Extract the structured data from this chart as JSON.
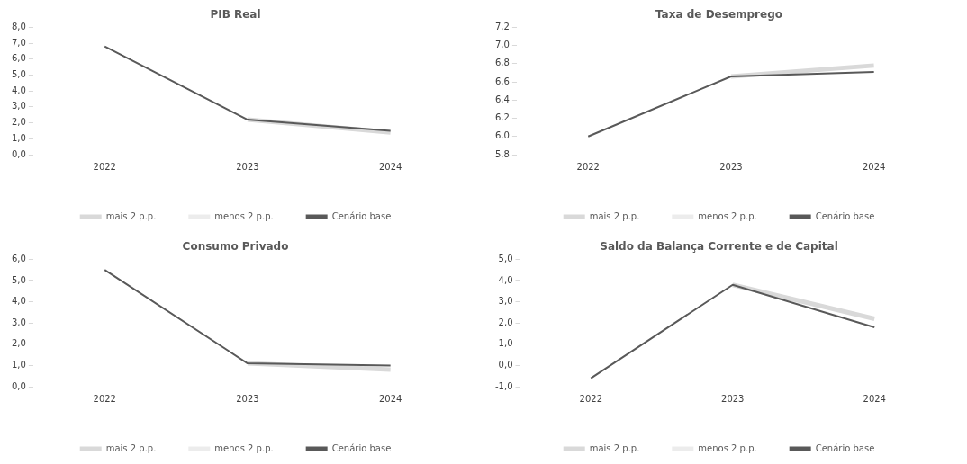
{
  "chart_data": [
    {
      "type": "line",
      "title": "PIB Real",
      "categories": [
        "2022",
        "2023",
        "2024"
      ],
      "legend": "bottom",
      "grid": false,
      "marker": "none",
      "ylim": [
        0,
        8
      ],
      "yticks": [
        {
          "value": 0,
          "label": "0,0"
        },
        {
          "value": 1,
          "label": "1,0"
        },
        {
          "value": 2,
          "label": "2,0"
        },
        {
          "value": 3,
          "label": "3,0"
        },
        {
          "value": 4,
          "label": "4,0"
        },
        {
          "value": 5,
          "label": "5,0"
        },
        {
          "value": 6,
          "label": "6,0"
        },
        {
          "value": 7,
          "label": "7,0"
        },
        {
          "value": 8,
          "label": "8,0"
        }
      ],
      "series": [
        {
          "name": "mais 2 p.p.",
          "color": "#d9d9d9",
          "values": [
            null,
            2.2,
            1.4
          ]
        },
        {
          "name": "menos 2 p.p.",
          "color": "#ececec",
          "values": [
            null,
            null,
            null
          ]
        },
        {
          "name": "Cenário base",
          "color": "#595959",
          "values": [
            6.8,
            2.2,
            1.5
          ]
        }
      ]
    },
    {
      "type": "line",
      "title": "Taxa de Desemprego",
      "categories": [
        "2022",
        "2023",
        "2024"
      ],
      "legend": "bottom",
      "grid": false,
      "marker": "none",
      "ylim": [
        5.8,
        7.2
      ],
      "yticks": [
        {
          "value": 5.8,
          "label": "5,8"
        },
        {
          "value": 6.0,
          "label": "6,0"
        },
        {
          "value": 6.2,
          "label": "6,2"
        },
        {
          "value": 6.4,
          "label": "6,4"
        },
        {
          "value": 6.6,
          "label": "6,6"
        },
        {
          "value": 6.8,
          "label": "6,8"
        },
        {
          "value": 7.0,
          "label": "7,0"
        },
        {
          "value": 7.2,
          "label": "7,2"
        }
      ],
      "series": [
        {
          "name": "mais 2 p.p.",
          "color": "#d9d9d9",
          "values": [
            null,
            6.66,
            6.78
          ]
        },
        {
          "name": "menos 2 p.p.",
          "color": "#ececec",
          "values": [
            null,
            null,
            null
          ]
        },
        {
          "name": "Cenário base",
          "color": "#595959",
          "values": [
            6.0,
            6.66,
            6.71
          ]
        }
      ]
    },
    {
      "type": "line",
      "title": "Consumo Privado",
      "categories": [
        "2022",
        "2023",
        "2024"
      ],
      "legend": "bottom",
      "grid": false,
      "marker": "none",
      "ylim": [
        0,
        6
      ],
      "yticks": [
        {
          "value": 0,
          "label": "0,0"
        },
        {
          "value": 1,
          "label": "1,0"
        },
        {
          "value": 2,
          "label": "2,0"
        },
        {
          "value": 3,
          "label": "3,0"
        },
        {
          "value": 4,
          "label": "4,0"
        },
        {
          "value": 5,
          "label": "5,0"
        },
        {
          "value": 6,
          "label": "6,0"
        }
      ],
      "series": [
        {
          "name": "mais 2 p.p.",
          "color": "#d9d9d9",
          "values": [
            null,
            1.1,
            0.8
          ]
        },
        {
          "name": "menos 2 p.p.",
          "color": "#ececec",
          "values": [
            null,
            null,
            null
          ]
        },
        {
          "name": "Cenário base",
          "color": "#595959",
          "values": [
            5.5,
            1.1,
            1.0
          ]
        }
      ]
    },
    {
      "type": "line",
      "title": "Saldo da Balança Corrente e de Capital",
      "categories": [
        "2022",
        "2023",
        "2024"
      ],
      "legend": "bottom",
      "grid": false,
      "marker": "none",
      "ylim": [
        -1,
        5
      ],
      "yticks": [
        {
          "value": -1,
          "label": "-1,0"
        },
        {
          "value": 0,
          "label": "0,0"
        },
        {
          "value": 1,
          "label": "1,0"
        },
        {
          "value": 2,
          "label": "2,0"
        },
        {
          "value": 3,
          "label": "3,0"
        },
        {
          "value": 4,
          "label": "4,0"
        },
        {
          "value": 5,
          "label": "5,0"
        }
      ],
      "series": [
        {
          "name": "mais 2 p.p.",
          "color": "#d9d9d9",
          "values": [
            null,
            3.8,
            2.2
          ]
        },
        {
          "name": "menos 2 p.p.",
          "color": "#ececec",
          "values": [
            null,
            null,
            null
          ]
        },
        {
          "name": "Cenário base",
          "color": "#595959",
          "values": [
            -0.6,
            3.8,
            1.8
          ]
        }
      ]
    }
  ]
}
